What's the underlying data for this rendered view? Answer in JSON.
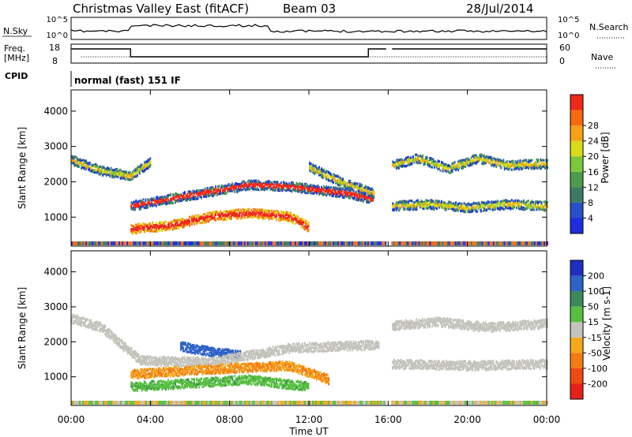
{
  "header": {
    "station": "Christmas Valley East (fitACF)",
    "beam": "Beam 03",
    "date": "28/Jul/2014"
  },
  "noise_panel": {
    "left_label": "N.Sky",
    "left_ticks": [
      "10^5",
      "10^0"
    ],
    "right_ticks": [
      "10^5",
      "10^0"
    ],
    "right_label": "N.Search"
  },
  "freq_panel": {
    "left_label_1": "Freq.",
    "left_label_2": "[MHz]",
    "left_ticks": [
      "18",
      "8"
    ],
    "right_ticks": [
      "60",
      "0"
    ],
    "right_label": "Nave"
  },
  "cpid": {
    "label": "CPID",
    "value": "normal (fast) 151 IF"
  },
  "time_axis": {
    "label": "Time UT",
    "ticks": [
      "00:00",
      "04:00",
      "08:00",
      "12:00",
      "16:00",
      "20:00",
      "00:00"
    ]
  },
  "colors": {
    "power": [
      "#1c2ee0",
      "#2850c8",
      "#3c7a64",
      "#4e9a4e",
      "#7cc83a",
      "#d8dc18",
      "#f8a018",
      "#f86a10",
      "#f02818"
    ],
    "velocity": [
      "#1f2fbf",
      "#2e63c8",
      "#3c8a5c",
      "#58c040",
      "#c4c4bc",
      "#f4a81c",
      "#f47a14",
      "#ee4a12",
      "#e8201a"
    ]
  },
  "chart_data": [
    {
      "type": "heatmap",
      "title": "",
      "xlabel": "Time UT",
      "ylabel": "Slant Range [km]",
      "xlim": [
        0,
        24
      ],
      "ylim": [
        180,
        4600
      ],
      "yticks": [
        "1000",
        "2000",
        "3000",
        "4000"
      ],
      "colorbar": {
        "label": "Power [dB]",
        "ticks": [
          "4",
          "8",
          "12",
          "16",
          "20",
          "24",
          "28"
        ],
        "range": [
          0,
          30
        ]
      },
      "data_gap_hours": [
        15.9,
        16.1
      ],
      "series": [
        {
          "x": [
            0.0,
            1.5,
            3.0,
            4.0
          ],
          "y": [
            2600,
            2300,
            2150,
            2550
          ]
        },
        {
          "x": [
            3.0,
            5.0,
            7.0,
            9.0,
            11.0,
            12.5,
            14.0,
            15.2
          ],
          "y": [
            1300,
            1500,
            1700,
            1900,
            1850,
            1750,
            1650,
            1500
          ]
        },
        {
          "x": [
            3.0,
            5.0,
            7.0,
            9.0,
            11.0,
            12.0
          ],
          "y": [
            650,
            750,
            1000,
            1100,
            1000,
            700
          ]
        },
        {
          "x": [
            12.0,
            13.5,
            14.5,
            15.3
          ],
          "y": [
            2400,
            2000,
            1800,
            1650
          ]
        },
        {
          "x": [
            16.2,
            17.5,
            19.0,
            20.5,
            22.0,
            24.0
          ],
          "y": [
            2450,
            2650,
            2350,
            2650,
            2450,
            2500
          ]
        },
        {
          "x": [
            16.2,
            18.0,
            20.0,
            22.0,
            24.0
          ],
          "y": [
            1300,
            1350,
            1250,
            1350,
            1300
          ]
        }
      ]
    },
    {
      "type": "heatmap",
      "title": "",
      "xlabel": "Time UT",
      "ylabel": "Slant Range [km]",
      "xlim": [
        0,
        24
      ],
      "ylim": [
        180,
        4600
      ],
      "yticks": [
        "1000",
        "2000",
        "3000",
        "4000"
      ],
      "colorbar": {
        "label": "Velocity [m s-1]",
        "ticks": [
          "200",
          "100",
          "50",
          "15",
          "-15",
          "-50",
          "-100",
          "-200"
        ]
      },
      "data_gap_hours": [
        15.9,
        16.1
      ],
      "series": [
        {
          "x": [
            5.5,
            7.0,
            8.5
          ],
          "y": [
            1850,
            1700,
            1600
          ],
          "velocity": 150
        },
        {
          "x": [
            0.0,
            1.5,
            3.5,
            7.0,
            11.0,
            15.5
          ],
          "y": [
            2650,
            2400,
            1450,
            1400,
            1800,
            1900
          ],
          "velocity": 0
        },
        {
          "x": [
            3.0,
            7.0,
            11.0,
            13.0
          ],
          "y": [
            1050,
            1200,
            1300,
            900
          ],
          "velocity": -50
        },
        {
          "x": [
            3.0,
            6.0,
            9.0,
            12.0
          ],
          "y": [
            700,
            800,
            900,
            700
          ],
          "velocity": 40
        },
        {
          "x": [
            16.2,
            18.5,
            21.0,
            24.0
          ],
          "y": [
            2450,
            2550,
            2400,
            2500
          ],
          "velocity": 0
        },
        {
          "x": [
            16.2,
            20.0,
            24.0
          ],
          "y": [
            1350,
            1300,
            1350
          ],
          "velocity": 0
        }
      ]
    }
  ]
}
